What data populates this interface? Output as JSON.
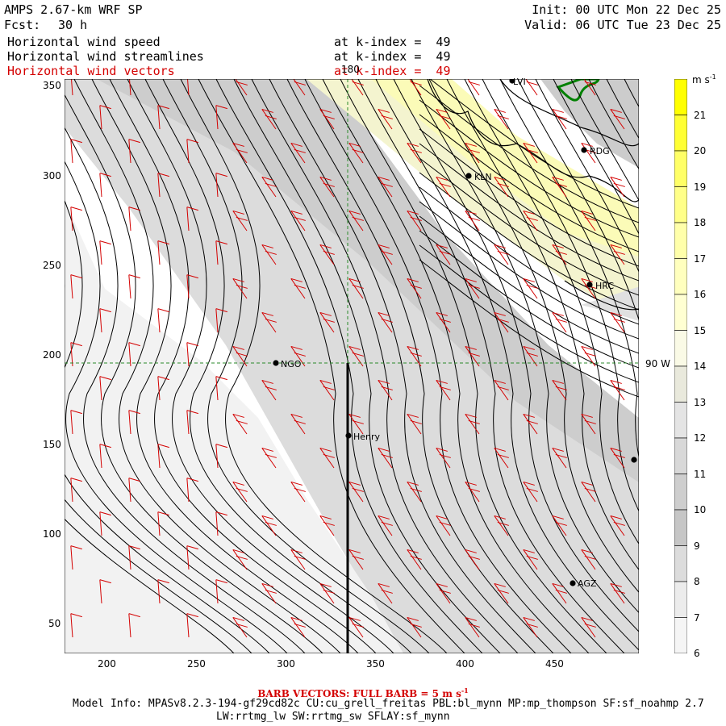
{
  "header": {
    "model": "AMPS 2.67-km WRF SP",
    "fcst_label": "Fcst:",
    "fcst_value": "30 h",
    "init": "Init: 00 UTC Mon 22 Dec 25",
    "valid": "Valid: 06 UTC Tue 23 Dec 25"
  },
  "fields": [
    {
      "name": "Horizontal wind speed",
      "level": "at k-index =  49",
      "color": "#000000"
    },
    {
      "name": "Horizontal wind streamlines",
      "level": "at k-index =  49",
      "color": "#000000"
    },
    {
      "name": "Horizontal wind vectors",
      "level": "at k-index =  49",
      "color": "#d40000"
    }
  ],
  "map": {
    "x_ticks": [
      "200",
      "250",
      "300",
      "350",
      "400",
      "450"
    ],
    "y_ticks": [
      "350",
      "300",
      "250",
      "200",
      "150",
      "100",
      "50"
    ],
    "grid_labels": {
      "meridian": "180",
      "parallel": "90 W"
    },
    "stations": [
      {
        "id": "LVI"
      },
      {
        "id": "RDG"
      },
      {
        "id": "KLN"
      },
      {
        "id": "HRC"
      },
      {
        "id": "NGO"
      },
      {
        "id": "Henry"
      },
      {
        "id": "AGZ"
      },
      {
        "id": ""
      }
    ]
  },
  "colorbar": {
    "unit": "m s",
    "unit_exp": "-1",
    "levels": [
      "21",
      "20",
      "19",
      "18",
      "17",
      "16",
      "15",
      "14",
      "13",
      "12",
      "11",
      "10",
      "9",
      "8",
      "7",
      "6"
    ],
    "colors": [
      "#ffff00",
      "#ffff33",
      "#ffff66",
      "#ffff88",
      "#ffffaa",
      "#ffffbe",
      "#ffffd2",
      "#fafae6",
      "#e9e9dc",
      "#e4e4e4",
      "#d8d8d8",
      "#cecece",
      "#c6c6c6",
      "#dcdcdc",
      "#ececec",
      "#f5f5f5"
    ]
  },
  "footer": {
    "barb_note": "BARB VECTORS:  FULL BARB = 5 m s",
    "barb_exp": "-1",
    "model_info": "Model Info: MPASv8.2.3-194-gf29cd82c CU:cu_grell_freitas PBL:bl_mynn MP:mp_thompson SF:sf_noahmp 2.7",
    "model_info2": "LW:rrtmg_lw SW:rrtmg_sw SFLAY:sf_mynn"
  }
}
